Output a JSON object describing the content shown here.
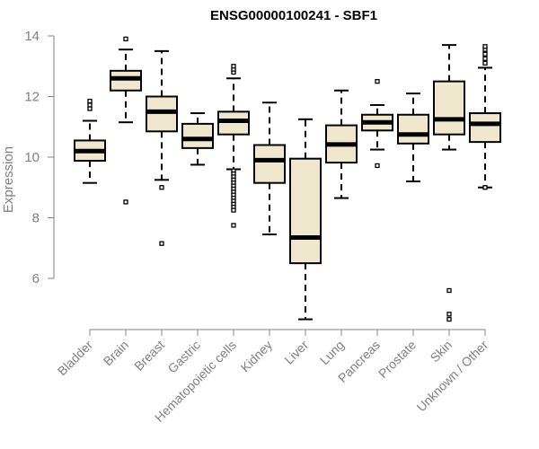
{
  "chart_data": {
    "type": "boxplot",
    "title": "ENSG00000100241 - SBF1",
    "xlabel": "",
    "ylabel": "Expression",
    "ylim": [
      4.3,
      14.3
    ],
    "yticks": [
      6,
      8,
      10,
      12,
      14
    ],
    "box_fill": "#efe8cf",
    "box_stroke": "#000000",
    "axis_color": "#808080",
    "categories": [
      "Bladder",
      "Brain",
      "Breast",
      "Gastric",
      "Hematopoietic cells",
      "Kidney",
      "Liver",
      "Lung",
      "Pancreas",
      "Prostate",
      "Skin",
      "Unknown / Other"
    ],
    "boxes": [
      {
        "name": "Bladder",
        "low": 9.15,
        "q1": 9.88,
        "median": 10.2,
        "q3": 10.55,
        "high": 11.2,
        "outliers": [
          11.6,
          11.72,
          11.85
        ]
      },
      {
        "name": "Brain",
        "low": 11.15,
        "q1": 12.2,
        "median": 12.6,
        "q3": 12.85,
        "high": 13.55,
        "outliers": [
          8.52,
          13.9
        ]
      },
      {
        "name": "Breast",
        "low": 9.25,
        "q1": 10.85,
        "median": 11.5,
        "q3": 12.0,
        "high": 13.5,
        "outliers": [
          9.0,
          7.15
        ]
      },
      {
        "name": "Gastric",
        "low": 9.75,
        "q1": 10.3,
        "median": 10.6,
        "q3": 11.1,
        "high": 11.45,
        "outliers": []
      },
      {
        "name": "Hematopoietic cells",
        "low": 9.6,
        "q1": 10.75,
        "median": 11.2,
        "q3": 11.5,
        "high": 12.6,
        "outliers": [
          12.8,
          12.9,
          13.0,
          9.55,
          9.45,
          9.35,
          9.25,
          9.15,
          9.05,
          8.95,
          8.85,
          8.75,
          8.65,
          8.55,
          8.45,
          8.35,
          8.25,
          7.75
        ]
      },
      {
        "name": "Kidney",
        "low": 7.45,
        "q1": 9.15,
        "median": 9.9,
        "q3": 10.4,
        "high": 11.8,
        "outliers": []
      },
      {
        "name": "Liver",
        "low": 4.65,
        "q1": 6.5,
        "median": 7.35,
        "q3": 9.95,
        "high": 11.25,
        "outliers": []
      },
      {
        "name": "Lung",
        "low": 8.65,
        "q1": 9.82,
        "median": 10.42,
        "q3": 11.05,
        "high": 12.2,
        "outliers": []
      },
      {
        "name": "Pancreas",
        "low": 10.25,
        "q1": 10.88,
        "median": 11.15,
        "q3": 11.4,
        "high": 11.72,
        "outliers": [
          12.5,
          9.72
        ]
      },
      {
        "name": "Prostate",
        "low": 9.2,
        "q1": 10.45,
        "median": 10.75,
        "q3": 11.4,
        "high": 12.1,
        "outliers": []
      },
      {
        "name": "Skin",
        "low": 10.25,
        "q1": 10.75,
        "median": 11.25,
        "q3": 12.5,
        "high": 13.7,
        "outliers": [
          5.6,
          4.82,
          4.65
        ]
      },
      {
        "name": "Unknown / Other",
        "low": 9.0,
        "q1": 10.5,
        "median": 11.1,
        "q3": 11.45,
        "high": 12.95,
        "outliers": [
          13.1,
          13.25,
          13.4,
          13.55,
          13.65,
          9.0
        ]
      }
    ]
  }
}
